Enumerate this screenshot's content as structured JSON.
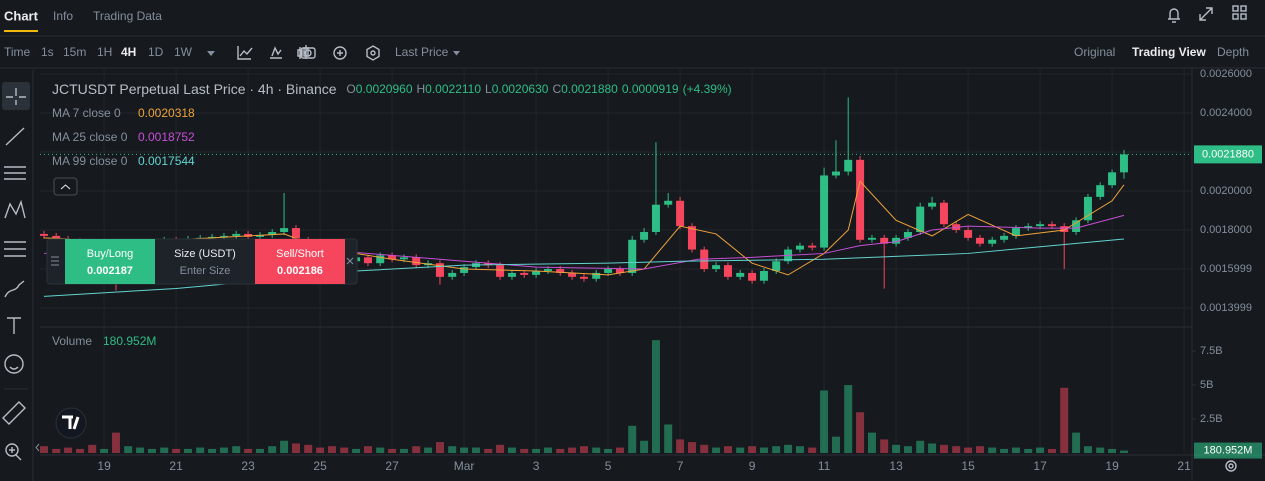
{
  "header": {
    "tabs": [
      "Chart",
      "Info",
      "Trading Data"
    ],
    "intervals": [
      "Time",
      "1s",
      "15m",
      "1H",
      "4H",
      "1D",
      "1W"
    ],
    "price_type": "Last Price",
    "views": [
      "Original",
      "Trading View",
      "Depth"
    ]
  },
  "order_panel": {
    "buy_label": "Buy/Long",
    "buy_price": "0.002187",
    "size_label": "Size (USDT)",
    "size_placeholder": "Enter Size",
    "sell_label": "Sell/Short",
    "sell_price": "0.002186"
  },
  "chart_data": {
    "type": "candlestick",
    "title": "JCTUSDT Perpetual Last Price · 4h · Binance",
    "readout": [
      {
        "key": "O",
        "value": "0.0020960"
      },
      {
        "key": "H",
        "value": "0.0022110"
      },
      {
        "key": "L",
        "value": "0.0020630"
      },
      {
        "key": "C",
        "value": "0.0021880"
      }
    ],
    "change": "0.0000919",
    "change_percent": "(+4.39%)",
    "up_color": "#2ebd85",
    "down_color": "#f6465d",
    "grid": true,
    "xlim": [
      -1.78,
      30.22
    ],
    "xticks": [
      {
        "value": 0,
        "label": "19"
      },
      {
        "value": 2,
        "label": "21"
      },
      {
        "value": 4,
        "label": "23"
      },
      {
        "value": 6,
        "label": "25"
      },
      {
        "value": 8,
        "label": "27"
      },
      {
        "value": 10,
        "label": "Mar"
      },
      {
        "value": 12,
        "label": "3"
      },
      {
        "value": 14,
        "label": "5"
      },
      {
        "value": 16,
        "label": "7"
      },
      {
        "value": 18,
        "label": "9"
      },
      {
        "value": 20,
        "label": "11"
      },
      {
        "value": 22,
        "label": "13"
      },
      {
        "value": 24,
        "label": "15"
      },
      {
        "value": 26,
        "label": "17"
      },
      {
        "value": 28,
        "label": "19"
      },
      {
        "value": 30,
        "label": "21"
      }
    ],
    "ylim": [
      0.001313,
      0.002631
    ],
    "yticks": [
      {
        "value": 0.0026,
        "label": "0.0026000"
      },
      {
        "value": 0.0024,
        "label": "0.0024000"
      },
      {
        "value": 0.0022,
        "label": "0.0022000"
      },
      {
        "value": 0.002,
        "label": "0.0020000"
      },
      {
        "value": 0.0018,
        "label": "0.0018000"
      },
      {
        "value": 0.0015999,
        "label": "0.0015999"
      },
      {
        "value": 0.0013999,
        "label": "0.0013999"
      }
    ],
    "x": [
      -1.67,
      -1.33,
      -1,
      -0.67,
      -0.33,
      0,
      0.33,
      0.67,
      1,
      1.33,
      1.67,
      2,
      2.33,
      2.67,
      3,
      3.33,
      3.67,
      4,
      4.33,
      4.67,
      5,
      5.33,
      5.67,
      6,
      6.33,
      6.67,
      7,
      7.33,
      7.67,
      8,
      8.33,
      8.67,
      9,
      9.33,
      9.67,
      10,
      10.33,
      10.67,
      11,
      11.33,
      11.67,
      12,
      12.33,
      12.67,
      13,
      13.33,
      13.67,
      14,
      14.33,
      14.67,
      15,
      15.33,
      15.67,
      16,
      16.33,
      16.67,
      17,
      17.33,
      17.67,
      18,
      18.33,
      18.67,
      19,
      19.33,
      19.67,
      20,
      20.33,
      20.67,
      21,
      21.33,
      21.67,
      22,
      22.33,
      22.67,
      23,
      23.33,
      23.67,
      24,
      24.33,
      24.67,
      25,
      25.33,
      25.67,
      26,
      26.33,
      26.67,
      27,
      27.33,
      27.67,
      28,
      28.33
    ],
    "open": [
      0.00178,
      0.00177,
      0.001755,
      0.001745,
      0.001735,
      0.00171,
      0.00172,
      0.00169,
      0.00173,
      0.001735,
      0.00174,
      0.00175,
      0.001745,
      0.001755,
      0.00176,
      0.001765,
      0.00177,
      0.00178,
      0.001765,
      0.001775,
      0.00179,
      0.00181,
      0.00175,
      0.0017,
      0.00168,
      0.00165,
      0.00164,
      0.00166,
      0.00163,
      0.00167,
      0.00165,
      0.00166,
      0.00162,
      0.00163,
      0.00156,
      0.00158,
      0.00161,
      0.00163,
      0.00162,
      0.00156,
      0.00158,
      0.00157,
      0.00159,
      0.0016,
      0.00158,
      0.00156,
      0.00155,
      0.00158,
      0.0016,
      0.00158,
      0.00175,
      0.00179,
      0.00193,
      0.00195,
      0.00182,
      0.0017,
      0.0016,
      0.00162,
      0.00156,
      0.00158,
      0.00154,
      0.00159,
      0.00164,
      0.0017,
      0.00172,
      0.00171,
      0.00208,
      0.0021,
      0.00216,
      0.00175,
      0.00176,
      0.00173,
      0.00176,
      0.00179,
      0.00192,
      0.00194,
      0.00183,
      0.0018,
      0.00176,
      0.00173,
      0.00175,
      0.00177,
      0.00181,
      0.00182,
      0.00183,
      0.00182,
      0.00179,
      0.00185,
      0.00197,
      0.00203,
      0.002096
    ],
    "high": [
      0.001795,
      0.001785,
      0.00177,
      0.00176,
      0.00175,
      0.001735,
      0.001735,
      0.001745,
      0.00175,
      0.001755,
      0.001765,
      0.001765,
      0.00177,
      0.001775,
      0.00178,
      0.001785,
      0.001795,
      0.001795,
      0.00179,
      0.001805,
      0.00199,
      0.001825,
      0.001765,
      0.001715,
      0.001695,
      0.001665,
      0.001675,
      0.001675,
      0.001685,
      0.001685,
      0.001675,
      0.001675,
      0.001645,
      0.001645,
      0.001595,
      0.001625,
      0.001645,
      0.001645,
      0.001635,
      0.001595,
      0.001595,
      0.001605,
      0.001615,
      0.001615,
      0.001595,
      0.001575,
      0.001595,
      0.001615,
      0.001615,
      0.00177,
      0.00181,
      0.00225,
      0.00199,
      0.00197,
      0.001835,
      0.001715,
      0.001635,
      0.001635,
      0.001595,
      0.001595,
      0.001605,
      0.001655,
      0.001715,
      0.001735,
      0.001735,
      0.00212,
      0.00226,
      0.00248,
      0.00218,
      0.001775,
      0.001775,
      0.001775,
      0.001805,
      0.00194,
      0.00197,
      0.001955,
      0.001845,
      0.001815,
      0.001775,
      0.001765,
      0.001785,
      0.001825,
      0.001835,
      0.001845,
      0.001845,
      0.001835,
      0.001865,
      0.001985,
      0.002045,
      0.00211,
      0.002211
    ],
    "low": [
      0.001755,
      0.00174,
      0.00173,
      0.00172,
      0.001695,
      0.001695,
      0.00149,
      0.001675,
      0.001715,
      0.00172,
      0.001725,
      0.00173,
      0.00173,
      0.00174,
      0.001745,
      0.00175,
      0.001755,
      0.00175,
      0.00175,
      0.00176,
      0.001775,
      0.001735,
      0.001685,
      0.001665,
      0.001635,
      0.001625,
      0.001625,
      0.001615,
      0.001615,
      0.001635,
      0.001635,
      0.001605,
      0.001605,
      0.00152,
      0.001545,
      0.001565,
      0.001595,
      0.001605,
      0.001545,
      0.001545,
      0.001555,
      0.001555,
      0.001575,
      0.001565,
      0.001545,
      0.001535,
      0.001535,
      0.001565,
      0.001565,
      0.001565,
      0.001735,
      0.001775,
      0.001915,
      0.001805,
      0.001685,
      0.001585,
      0.001585,
      0.001545,
      0.001545,
      0.001525,
      0.001525,
      0.001575,
      0.001625,
      0.001685,
      0.001695,
      0.001695,
      0.002065,
      0.00208,
      0.001735,
      0.001735,
      0.0015,
      0.001715,
      0.001745,
      0.001775,
      0.001905,
      0.001815,
      0.001785,
      0.001745,
      0.001715,
      0.001715,
      0.001735,
      0.001755,
      0.001795,
      0.001805,
      0.001805,
      0.0016,
      0.001775,
      0.001835,
      0.001955,
      0.002015,
      0.002063
    ],
    "close": [
      0.00177,
      0.001755,
      0.001745,
      0.001735,
      0.00171,
      0.00172,
      0.00169,
      0.00173,
      0.001735,
      0.00174,
      0.00175,
      0.001745,
      0.001755,
      0.00176,
      0.001765,
      0.00177,
      0.00178,
      0.001765,
      0.001775,
      0.00179,
      0.00181,
      0.00175,
      0.0017,
      0.00168,
      0.00165,
      0.00164,
      0.00166,
      0.00163,
      0.00167,
      0.00165,
      0.00166,
      0.00162,
      0.00163,
      0.00156,
      0.00158,
      0.00161,
      0.00163,
      0.00162,
      0.00156,
      0.00158,
      0.00157,
      0.00159,
      0.0016,
      0.00158,
      0.00156,
      0.00155,
      0.00158,
      0.0016,
      0.00158,
      0.00175,
      0.00179,
      0.00193,
      0.00195,
      0.00182,
      0.0017,
      0.0016,
      0.00162,
      0.00156,
      0.00158,
      0.00154,
      0.00159,
      0.00164,
      0.0017,
      0.00172,
      0.00171,
      0.00208,
      0.0021,
      0.00216,
      0.00175,
      0.00176,
      0.00173,
      0.00176,
      0.00179,
      0.00192,
      0.00194,
      0.00183,
      0.0018,
      0.00176,
      0.00173,
      0.00175,
      0.00177,
      0.00181,
      0.00182,
      0.00183,
      0.00182,
      0.00179,
      0.00185,
      0.00197,
      0.00203,
      0.002096,
      0.002188
    ],
    "series": [
      {
        "name": "MA 7 close 0",
        "value_label": "0.0020318",
        "color": "#f0a23a",
        "x": [
          -1.67,
          1,
          3,
          5,
          6,
          8,
          10,
          12,
          14,
          15,
          16,
          17,
          18,
          19,
          20,
          20.67,
          21,
          22,
          23,
          24,
          25.33,
          26.67,
          28,
          28.33
        ],
        "values": [
          0.00176,
          0.00174,
          0.00176,
          0.00178,
          0.00171,
          0.00165,
          0.0016,
          0.00159,
          0.00157,
          0.0016,
          0.00182,
          0.00178,
          0.00163,
          0.00157,
          0.00168,
          0.0018,
          0.00205,
          0.00185,
          0.00177,
          0.00188,
          0.00177,
          0.0018,
          0.00195,
          0.002032
        ]
      },
      {
        "name": "MA 25 close 0",
        "value_label": "0.0018752",
        "color": "#c74fd6",
        "x": [
          -1.67,
          4,
          6,
          8,
          12,
          15,
          16.5,
          18,
          20,
          21,
          22,
          23,
          24,
          26,
          27,
          28.33
        ],
        "values": [
          0.00168,
          0.00174,
          0.0017,
          0.00167,
          0.00161,
          0.0016,
          0.00165,
          0.00166,
          0.00168,
          0.00172,
          0.00174,
          0.0018,
          0.00182,
          0.00181,
          0.00181,
          0.001875
        ]
      },
      {
        "name": "MA 99 close 0",
        "value_label": "0.0017544",
        "color": "#63d3d0",
        "x": [
          -1.67,
          2,
          5,
          7,
          10,
          14,
          16,
          20,
          24,
          28.33
        ],
        "values": [
          0.00146,
          0.0015,
          0.00155,
          0.00159,
          0.00162,
          0.00163,
          0.00164,
          0.00165,
          0.00168,
          0.001754
        ]
      }
    ],
    "volume": {
      "label": "Volume",
      "value_label": "180.952M",
      "ylim": [
        0,
        9050000000
      ],
      "yticks": [
        {
          "value": 2500000000,
          "label": "2.5B"
        },
        {
          "value": 5000000000,
          "label": "5B"
        },
        {
          "value": 7500000000,
          "label": "7.5B"
        }
      ],
      "values": [
        500000000.0,
        300000000.0,
        400000000.0,
        300000000.0,
        600000000.0,
        300000000.0,
        1500000000.0,
        500000000.0,
        400000000.0,
        300000000.0,
        400000000.0,
        300000000.0,
        300000000.0,
        400000000.0,
        300000000.0,
        400000000.0,
        500000000.0,
        300000000.0,
        300000000.0,
        500000000.0,
        900000000.0,
        700000000.0,
        600000000.0,
        400000000.0,
        500000000.0,
        400000000.0,
        300000000.0,
        500000000.0,
        400000000.0,
        300000000.0,
        300000000.0,
        500000000.0,
        400000000.0,
        800000000.0,
        500000000.0,
        400000000.0,
        400000000.0,
        300000000.0,
        600000000.0,
        400000000.0,
        300000000.0,
        300000000.0,
        400000000.0,
        300000000.0,
        400000000.0,
        500000000.0,
        400000000.0,
        300000000.0,
        400000000.0,
        2000000000.0,
        900000000.0,
        8300000000.0,
        2100000000.0,
        1000000000.0,
        800000000.0,
        600000000.0,
        400000000.0,
        500000000.0,
        400000000.0,
        500000000.0,
        400000000.0,
        500000000.0,
        600000000.0,
        500000000.0,
        400000000.0,
        4600000000.0,
        1200000000.0,
        5000000000.0,
        3000000000.0,
        1500000000.0,
        1000000000.0,
        600000000.0,
        500000000.0,
        900000000.0,
        700000000.0,
        600000000.0,
        500000000.0,
        400000000.0,
        500000000.0,
        400000000.0,
        300000000.0,
        400000000.0,
        300000000.0,
        400000000.0,
        300000000.0,
        4800000000.0,
        1500000000.0,
        500000000.0,
        400000000.0,
        300000000.0,
        180952000.0
      ]
    }
  }
}
